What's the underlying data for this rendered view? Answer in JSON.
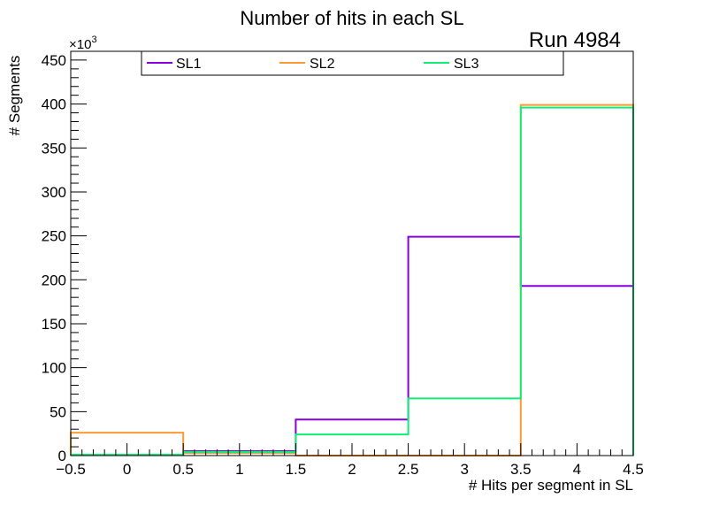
{
  "chart_data": {
    "type": "histogram",
    "title": "Number of hits in each SL",
    "run_label": "Run 4984",
    "xlabel": "# Hits per segment in SL",
    "ylabel": "# Segments",
    "y_multiplier_base": "×10",
    "y_multiplier_exp": "3",
    "xlim": [
      -0.5,
      4.5
    ],
    "ylim": [
      0,
      460
    ],
    "x_ticks": [
      -0.5,
      0,
      0.5,
      1,
      1.5,
      2,
      2.5,
      3,
      3.5,
      4,
      4.5
    ],
    "x_tick_labels": [
      "−0.5",
      "0",
      "0.5",
      "1",
      "1.5",
      "2",
      "2.5",
      "3",
      "3.5",
      "4",
      "4.5"
    ],
    "y_ticks": [
      0,
      50,
      100,
      150,
      200,
      250,
      300,
      350,
      400,
      450
    ],
    "y_tick_labels": [
      "0",
      "50",
      "100",
      "150",
      "200",
      "250",
      "300",
      "350",
      "400",
      "450"
    ],
    "bin_edges": [
      -0.5,
      0.5,
      1.5,
      2.5,
      3.5,
      4.5
    ],
    "series": [
      {
        "name": "SL1",
        "color": "#8800dd",
        "values": [
          1,
          5,
          41,
          249,
          193
        ]
      },
      {
        "name": "SL2",
        "color": "#ff9933",
        "values": [
          26,
          3,
          0,
          0,
          399
        ]
      },
      {
        "name": "SL3",
        "color": "#11ee77",
        "values": [
          1,
          4,
          24,
          65,
          396
        ]
      }
    ],
    "legend": {
      "items": [
        "SL1",
        "SL2",
        "SL3"
      ],
      "placement": "top"
    }
  }
}
